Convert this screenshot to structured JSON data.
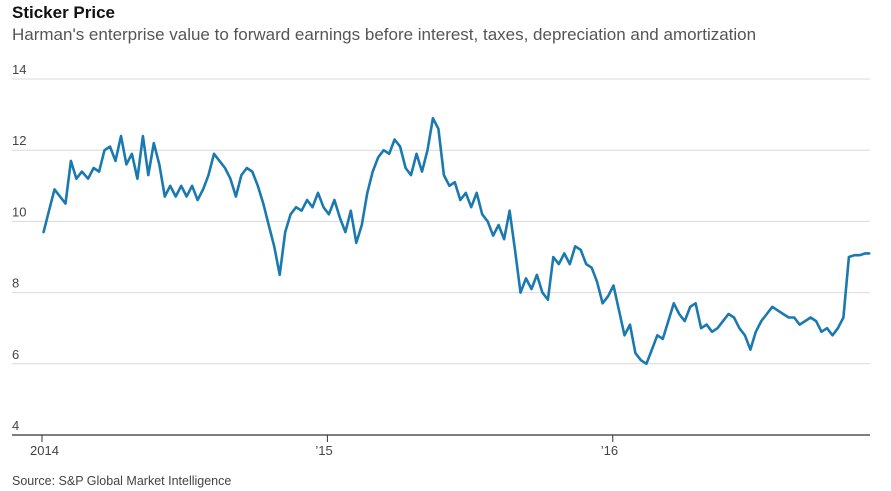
{
  "title": "Sticker Price",
  "subtitle": "Harman's enterprise value to forward earnings before interest, taxes, depreciation and amortization",
  "source": "Source: S&P Global Market Intelligence",
  "chart_data": {
    "type": "line",
    "title": "Sticker Price",
    "subtitle": "Harman's enterprise value to forward earnings before interest, taxes, depreciation and amortization",
    "xlabel": "",
    "ylabel": "",
    "ylim": [
      4,
      14
    ],
    "yticks": [
      4,
      6,
      8,
      10,
      12,
      14
    ],
    "xlim": [
      "2014-01-01",
      "2016-11-25"
    ],
    "xticks": [
      {
        "date": "2014-01-01",
        "label": "2014"
      },
      {
        "date": "2015-01-01",
        "label": "’15"
      },
      {
        "date": "2016-01-01",
        "label": "’16"
      }
    ],
    "grid": "horizontal",
    "line_color": "#1a7ab0",
    "series": [
      {
        "values": [
          [
            "2014-01-03",
            9.7
          ],
          [
            "2014-01-10",
            10.3
          ],
          [
            "2014-01-17",
            10.9
          ],
          [
            "2014-01-24",
            10.7
          ],
          [
            "2014-01-31",
            10.5
          ],
          [
            "2014-02-07",
            11.7
          ],
          [
            "2014-02-14",
            11.2
          ],
          [
            "2014-02-21",
            11.4
          ],
          [
            "2014-03-01",
            11.2
          ],
          [
            "2014-03-08",
            11.5
          ],
          [
            "2014-03-15",
            11.4
          ],
          [
            "2014-03-22",
            12.0
          ],
          [
            "2014-03-29",
            12.1
          ],
          [
            "2014-04-05",
            11.7
          ],
          [
            "2014-04-12",
            12.4
          ],
          [
            "2014-04-19",
            11.6
          ],
          [
            "2014-04-26",
            11.9
          ],
          [
            "2014-05-03",
            11.2
          ],
          [
            "2014-05-10",
            12.4
          ],
          [
            "2014-05-17",
            11.3
          ],
          [
            "2014-05-24",
            12.2
          ],
          [
            "2014-05-31",
            11.6
          ],
          [
            "2014-06-07",
            10.7
          ],
          [
            "2014-06-14",
            11.0
          ],
          [
            "2014-06-21",
            10.7
          ],
          [
            "2014-06-28",
            11.0
          ],
          [
            "2014-07-05",
            10.7
          ],
          [
            "2014-07-12",
            11.0
          ],
          [
            "2014-07-19",
            10.6
          ],
          [
            "2014-07-26",
            10.9
          ],
          [
            "2014-08-02",
            11.3
          ],
          [
            "2014-08-09",
            11.9
          ],
          [
            "2014-08-16",
            11.7
          ],
          [
            "2014-08-23",
            11.5
          ],
          [
            "2014-08-30",
            11.2
          ],
          [
            "2014-09-06",
            10.7
          ],
          [
            "2014-09-13",
            11.3
          ],
          [
            "2014-09-20",
            11.5
          ],
          [
            "2014-09-27",
            11.4
          ],
          [
            "2014-10-04",
            11.0
          ],
          [
            "2014-10-11",
            10.5
          ],
          [
            "2014-10-18",
            9.9
          ],
          [
            "2014-10-25",
            9.3
          ],
          [
            "2014-11-01",
            8.5
          ],
          [
            "2014-11-08",
            9.7
          ],
          [
            "2014-11-15",
            10.2
          ],
          [
            "2014-11-22",
            10.4
          ],
          [
            "2014-11-29",
            10.3
          ],
          [
            "2014-12-06",
            10.6
          ],
          [
            "2014-12-13",
            10.4
          ],
          [
            "2014-12-20",
            10.8
          ],
          [
            "2014-12-27",
            10.4
          ],
          [
            "2015-01-03",
            10.2
          ],
          [
            "2015-01-10",
            10.6
          ],
          [
            "2015-01-17",
            10.1
          ],
          [
            "2015-01-24",
            9.7
          ],
          [
            "2015-01-31",
            10.3
          ],
          [
            "2015-02-07",
            9.4
          ],
          [
            "2015-02-14",
            9.9
          ],
          [
            "2015-02-21",
            10.8
          ],
          [
            "2015-02-28",
            11.4
          ],
          [
            "2015-03-07",
            11.8
          ],
          [
            "2015-03-14",
            12.0
          ],
          [
            "2015-03-21",
            11.9
          ],
          [
            "2015-03-28",
            12.3
          ],
          [
            "2015-04-04",
            12.1
          ],
          [
            "2015-04-11",
            11.5
          ],
          [
            "2015-04-18",
            11.3
          ],
          [
            "2015-04-25",
            11.9
          ],
          [
            "2015-05-02",
            11.4
          ],
          [
            "2015-05-09",
            12.0
          ],
          [
            "2015-05-16",
            12.9
          ],
          [
            "2015-05-23",
            12.6
          ],
          [
            "2015-05-30",
            11.3
          ],
          [
            "2015-06-06",
            11.0
          ],
          [
            "2015-06-13",
            11.1
          ],
          [
            "2015-06-20",
            10.6
          ],
          [
            "2015-06-27",
            10.8
          ],
          [
            "2015-07-04",
            10.4
          ],
          [
            "2015-07-11",
            10.8
          ],
          [
            "2015-07-18",
            10.2
          ],
          [
            "2015-07-25",
            10.0
          ],
          [
            "2015-08-01",
            9.6
          ],
          [
            "2015-08-08",
            9.9
          ],
          [
            "2015-08-15",
            9.5
          ],
          [
            "2015-08-22",
            10.3
          ],
          [
            "2015-08-29",
            9.2
          ],
          [
            "2015-09-05",
            8.0
          ],
          [
            "2015-09-12",
            8.4
          ],
          [
            "2015-09-19",
            8.1
          ],
          [
            "2015-09-26",
            8.5
          ],
          [
            "2015-10-03",
            8.0
          ],
          [
            "2015-10-10",
            7.8
          ],
          [
            "2015-10-17",
            9.0
          ],
          [
            "2015-10-24",
            8.8
          ],
          [
            "2015-10-31",
            9.1
          ],
          [
            "2015-11-07",
            8.8
          ],
          [
            "2015-11-14",
            9.3
          ],
          [
            "2015-11-21",
            9.2
          ],
          [
            "2015-11-28",
            8.8
          ],
          [
            "2015-12-05",
            8.7
          ],
          [
            "2015-12-12",
            8.3
          ],
          [
            "2015-12-19",
            7.7
          ],
          [
            "2015-12-26",
            7.9
          ],
          [
            "2016-01-02",
            8.2
          ],
          [
            "2016-01-09",
            7.5
          ],
          [
            "2016-01-16",
            6.8
          ],
          [
            "2016-01-23",
            7.1
          ],
          [
            "2016-01-30",
            6.3
          ],
          [
            "2016-02-06",
            6.1
          ],
          [
            "2016-02-13",
            6.0
          ],
          [
            "2016-02-20",
            6.4
          ],
          [
            "2016-02-27",
            6.8
          ],
          [
            "2016-03-05",
            6.7
          ],
          [
            "2016-03-12",
            7.2
          ],
          [
            "2016-03-19",
            7.7
          ],
          [
            "2016-03-26",
            7.4
          ],
          [
            "2016-04-02",
            7.2
          ],
          [
            "2016-04-09",
            7.6
          ],
          [
            "2016-04-16",
            7.7
          ],
          [
            "2016-04-23",
            7.0
          ],
          [
            "2016-04-30",
            7.1
          ],
          [
            "2016-05-07",
            6.9
          ],
          [
            "2016-05-14",
            7.0
          ],
          [
            "2016-05-21",
            7.2
          ],
          [
            "2016-05-28",
            7.4
          ],
          [
            "2016-06-04",
            7.3
          ],
          [
            "2016-06-11",
            7.0
          ],
          [
            "2016-06-18",
            6.8
          ],
          [
            "2016-06-25",
            6.4
          ],
          [
            "2016-07-02",
            6.9
          ],
          [
            "2016-07-09",
            7.2
          ],
          [
            "2016-07-16",
            7.4
          ],
          [
            "2016-07-23",
            7.6
          ],
          [
            "2016-07-30",
            7.5
          ],
          [
            "2016-08-06",
            7.4
          ],
          [
            "2016-08-13",
            7.3
          ],
          [
            "2016-08-20",
            7.3
          ],
          [
            "2016-08-27",
            7.1
          ],
          [
            "2016-09-03",
            7.2
          ],
          [
            "2016-09-10",
            7.3
          ],
          [
            "2016-09-17",
            7.2
          ],
          [
            "2016-09-24",
            6.9
          ],
          [
            "2016-10-01",
            7.0
          ],
          [
            "2016-10-08",
            6.8
          ],
          [
            "2016-10-15",
            7.0
          ],
          [
            "2016-10-22",
            7.3
          ],
          [
            "2016-10-29",
            9.0
          ],
          [
            "2016-11-05",
            9.05
          ],
          [
            "2016-11-12",
            9.05
          ],
          [
            "2016-11-19",
            9.1
          ],
          [
            "2016-11-24",
            9.1
          ]
        ]
      }
    ]
  }
}
